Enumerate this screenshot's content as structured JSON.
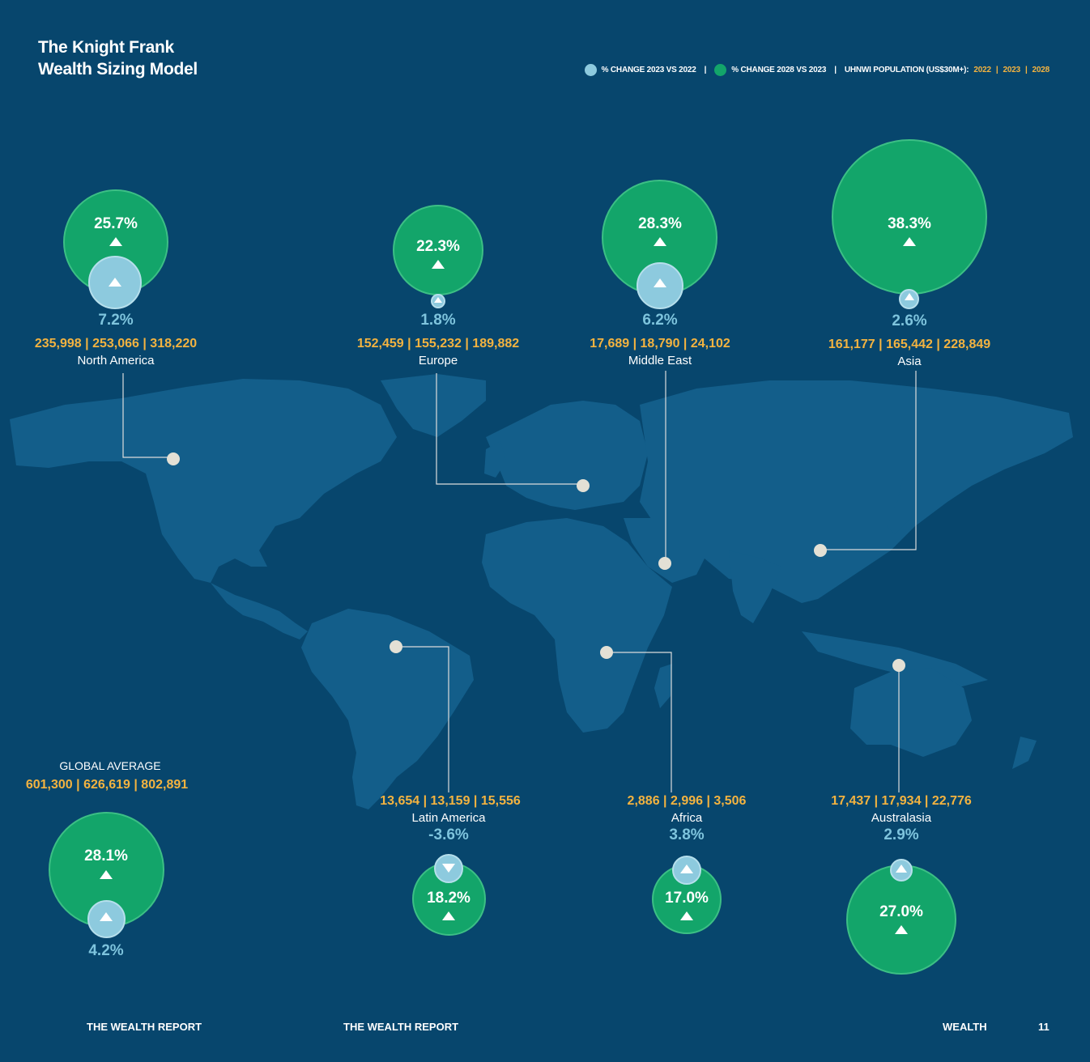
{
  "title_line1": "The Knight Frank",
  "title_line2": "Wealth Sizing Model",
  "legend": {
    "change_2023": "% CHANGE 2023 VS 2022",
    "change_2028": "% CHANGE 2028 VS 2023",
    "population_label": "UHNWI POPULATION (US$30M+):",
    "years": [
      "2022",
      "2023",
      "2028"
    ],
    "color_2023": "#8dcade",
    "color_2028": "#13a56a"
  },
  "regions": [
    {
      "name": "North America",
      "change_2028": "25.7%",
      "change_2023": "7.2%",
      "pop_2022": "235,998",
      "pop_2023": "253,066",
      "pop_2028": "318,220"
    },
    {
      "name": "Europe",
      "change_2028": "22.3%",
      "change_2023": "1.8%",
      "pop_2022": "152,459",
      "pop_2023": "155,232",
      "pop_2028": "189,882"
    },
    {
      "name": "Middle East",
      "change_2028": "28.3%",
      "change_2023": "6.2%",
      "pop_2022": "17,689",
      "pop_2023": "18,790",
      "pop_2028": "24,102"
    },
    {
      "name": "Asia",
      "change_2028": "38.3%",
      "change_2023": "2.6%",
      "pop_2022": "161,177",
      "pop_2023": "165,442",
      "pop_2028": "228,849"
    },
    {
      "name": "Latin America",
      "change_2028": "18.2%",
      "change_2023": "-3.6%",
      "pop_2022": "13,654",
      "pop_2023": "13,159",
      "pop_2028": "15,556"
    },
    {
      "name": "Africa",
      "change_2028": "17.0%",
      "change_2023": "3.8%",
      "pop_2022": "2,886",
      "pop_2023": "2,996",
      "pop_2028": "3,506"
    },
    {
      "name": "Australasia",
      "change_2028": "27.0%",
      "change_2023": "2.9%",
      "pop_2022": "17,437",
      "pop_2023": "17,934",
      "pop_2028": "22,776"
    }
  ],
  "global": {
    "title": "GLOBAL AVERAGE",
    "change_2028": "28.1%",
    "change_2023": "4.2%",
    "pop_2022": "601,300",
    "pop_2023": "626,619",
    "pop_2028": "802,891"
  },
  "footer": {
    "left1": "THE WEALTH REPORT",
    "left2": "THE WEALTH REPORT",
    "section": "WEALTH",
    "page": "11"
  },
  "colors": {
    "background": "#07466d",
    "land": "#135e8a",
    "population": "#f3b340",
    "marker": "#e3e0d5"
  }
}
